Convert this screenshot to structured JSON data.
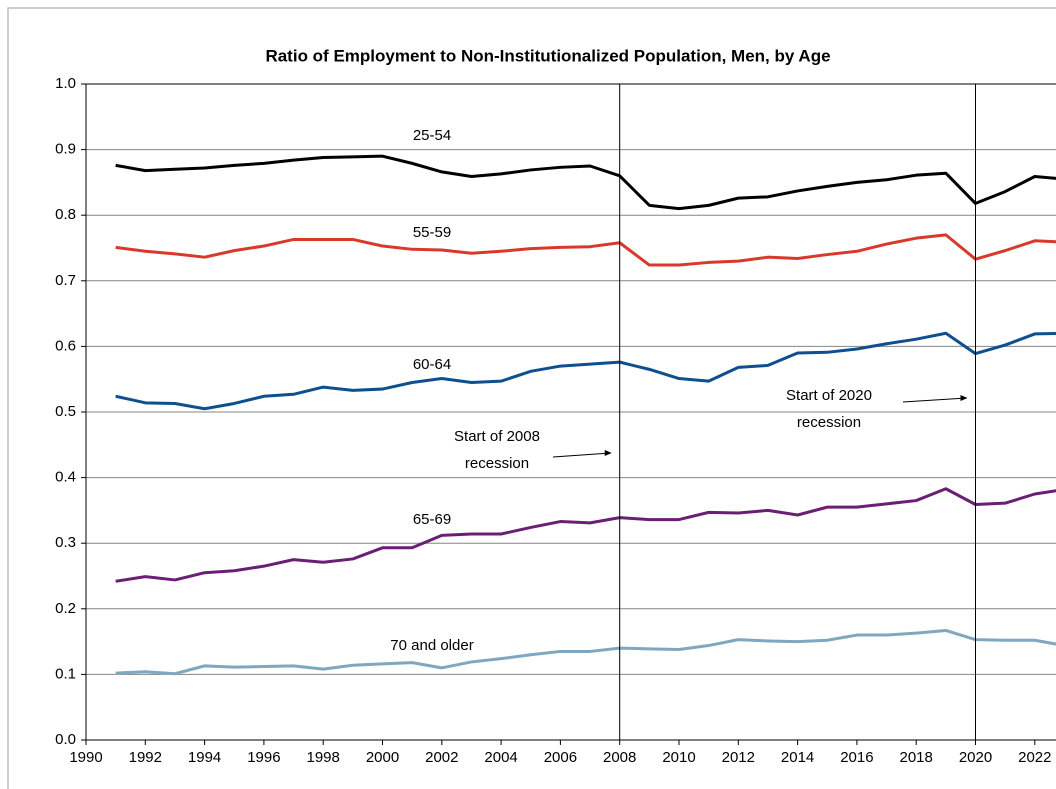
{
  "chart_data": {
    "type": "line",
    "title": "Ratio of Employment to Non-Institutionalized Population, Men, by Age",
    "x": [
      1991,
      1992,
      1993,
      1994,
      1995,
      1996,
      1997,
      1998,
      1999,
      2000,
      2001,
      2002,
      2003,
      2004,
      2005,
      2006,
      2007,
      2008,
      2009,
      2010,
      2011,
      2012,
      2013,
      2014,
      2015,
      2016,
      2017,
      2018,
      2019,
      2020,
      2021,
      2022,
      2023
    ],
    "series": [
      {
        "name": "25-54",
        "color": "#000000",
        "values": [
          0.876,
          0.868,
          0.87,
          0.872,
          0.876,
          0.879,
          0.884,
          0.888,
          0.889,
          0.89,
          0.879,
          0.866,
          0.859,
          0.863,
          0.869,
          0.873,
          0.875,
          0.86,
          0.815,
          0.81,
          0.815,
          0.826,
          0.828,
          0.837,
          0.844,
          0.85,
          0.854,
          0.861,
          0.864,
          0.818,
          0.836,
          0.859,
          0.855
        ]
      },
      {
        "name": "55-59",
        "color": "#d9392b",
        "values": [
          0.751,
          0.745,
          0.741,
          0.736,
          0.746,
          0.753,
          0.763,
          0.763,
          0.763,
          0.753,
          0.748,
          0.747,
          0.742,
          0.745,
          0.749,
          0.751,
          0.752,
          0.758,
          0.724,
          0.724,
          0.728,
          0.73,
          0.736,
          0.734,
          0.74,
          0.745,
          0.756,
          0.765,
          0.77,
          0.733,
          0.746,
          0.761,
          0.759
        ]
      },
      {
        "name": "60-64",
        "color": "#0e4f8f",
        "values": [
          0.524,
          0.514,
          0.513,
          0.505,
          0.513,
          0.524,
          0.527,
          0.538,
          0.533,
          0.535,
          0.545,
          0.551,
          0.545,
          0.547,
          0.562,
          0.57,
          0.573,
          0.576,
          0.565,
          0.551,
          0.547,
          0.568,
          0.571,
          0.59,
          0.591,
          0.596,
          0.604,
          0.611,
          0.62,
          0.589,
          0.602,
          0.619,
          0.62
        ]
      },
      {
        "name": "65-69",
        "color": "#6a1f75",
        "values": [
          0.242,
          0.249,
          0.244,
          0.255,
          0.258,
          0.265,
          0.275,
          0.271,
          0.276,
          0.293,
          0.293,
          0.312,
          0.314,
          0.314,
          0.324,
          0.333,
          0.331,
          0.339,
          0.336,
          0.336,
          0.347,
          0.346,
          0.35,
          0.343,
          0.355,
          0.355,
          0.36,
          0.365,
          0.383,
          0.359,
          0.361,
          0.375,
          0.382
        ]
      },
      {
        "name": "70 and older",
        "color": "#7fa8c0",
        "values": [
          0.102,
          0.104,
          0.101,
          0.113,
          0.111,
          0.112,
          0.113,
          0.108,
          0.114,
          0.116,
          0.118,
          0.11,
          0.119,
          0.124,
          0.13,
          0.135,
          0.135,
          0.14,
          0.139,
          0.138,
          0.144,
          0.153,
          0.151,
          0.15,
          0.152,
          0.16,
          0.16,
          0.163,
          0.167,
          0.153,
          0.152,
          0.152,
          0.144
        ]
      }
    ],
    "xlim": [
      1990,
      2024
    ],
    "xticks": [
      1990,
      1992,
      1994,
      1996,
      1998,
      2000,
      2002,
      2004,
      2006,
      2008,
      2010,
      2012,
      2014,
      2016,
      2018,
      2020,
      2022
    ],
    "ylim": [
      0,
      1
    ],
    "yticks": [
      {
        "value": 0,
        "label": "0.0"
      },
      0.1,
      0.2,
      0.3,
      0.4,
      0.5,
      0.6,
      0.7,
      0.8,
      0.9,
      {
        "value": 1,
        "label": "1.0"
      }
    ],
    "grid": true,
    "annotations": [
      {
        "x": 2008,
        "lines": [
          "Start of 2008",
          "recession"
        ]
      },
      {
        "x": 2020,
        "lines": [
          "Start of 2020",
          "recession"
        ]
      }
    ]
  }
}
